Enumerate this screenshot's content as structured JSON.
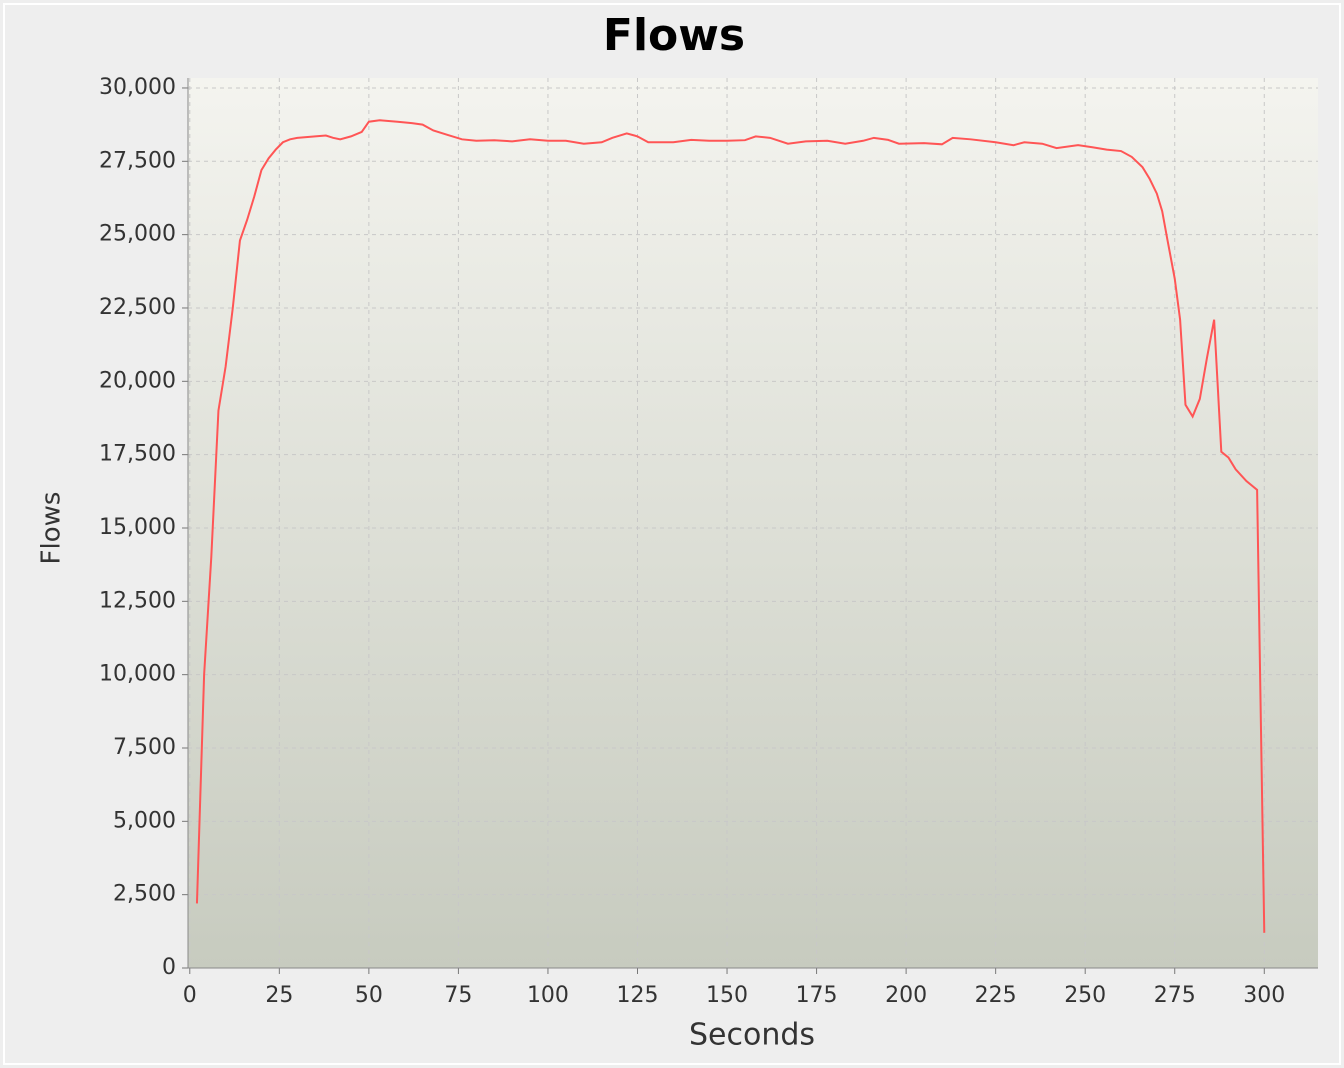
{
  "chart_data": {
    "type": "line",
    "title": "Flows",
    "xlabel": "Seconds",
    "ylabel": "Flows",
    "x": [
      2,
      4,
      6,
      8,
      10,
      12,
      14,
      16,
      18,
      20,
      22,
      24,
      26,
      28,
      30,
      35,
      38,
      40,
      42,
      45,
      48,
      50,
      53,
      58,
      62,
      65,
      68,
      72,
      76,
      80,
      85,
      90,
      95,
      100,
      105,
      110,
      115,
      118,
      122,
      125,
      128,
      135,
      140,
      145,
      150,
      155,
      158,
      162,
      167,
      172,
      178,
      183,
      188,
      191,
      195,
      198,
      205,
      210,
      213,
      218,
      225,
      230,
      233,
      238,
      242,
      248,
      252,
      256,
      260,
      263,
      266,
      268,
      270,
      271.5,
      273,
      275,
      276.5,
      278,
      280,
      282,
      284,
      286,
      288,
      290,
      292,
      295,
      298,
      300
    ],
    "series": [
      {
        "name": "Flows",
        "color": "#ff5555",
        "values": [
          2200,
          10000,
          14000,
          19000,
          20500,
          22500,
          24800,
          25500,
          26300,
          27200,
          27600,
          27900,
          28150,
          28250,
          28300,
          28350,
          28380,
          28300,
          28250,
          28350,
          28500,
          28850,
          28900,
          28850,
          28800,
          28750,
          28550,
          28400,
          28250,
          28200,
          28220,
          28180,
          28250,
          28200,
          28200,
          28100,
          28150,
          28300,
          28450,
          28350,
          28150,
          28150,
          28230,
          28200,
          28200,
          28220,
          28350,
          28300,
          28100,
          28180,
          28200,
          28100,
          28200,
          28300,
          28230,
          28100,
          28120,
          28080,
          28300,
          28250,
          28150,
          28050,
          28150,
          28100,
          27950,
          28050,
          27980,
          27900,
          27850,
          27650,
          27300,
          26900,
          26400,
          25800,
          24800,
          23500,
          22100,
          19200,
          18800,
          19400,
          20800,
          22100,
          17600,
          17400,
          17000,
          16600,
          16300,
          1200
        ]
      }
    ],
    "xlim": [
      -0.5,
      315
    ],
    "ylim": [
      0,
      30340
    ],
    "xticks": [
      0,
      25,
      50,
      75,
      100,
      125,
      150,
      175,
      200,
      225,
      250,
      275,
      300
    ],
    "yticks": [
      0,
      {
        "value": 2500,
        "label": "2,500"
      },
      {
        "value": 5000,
        "label": "5,000"
      },
      {
        "value": 7500,
        "label": "7,500"
      },
      {
        "value": 10000,
        "label": "10,000"
      },
      {
        "value": 12500,
        "label": "12,500"
      },
      {
        "value": 15000,
        "label": "15,000"
      },
      {
        "value": 17500,
        "label": "17,500"
      },
      {
        "value": 20000,
        "label": "20,000"
      },
      {
        "value": 22500,
        "label": "22,500"
      },
      {
        "value": 25000,
        "label": "25,000"
      },
      {
        "value": 27500,
        "label": "27,500"
      },
      {
        "value": 30000,
        "label": "30,000"
      }
    ],
    "grid": true
  }
}
